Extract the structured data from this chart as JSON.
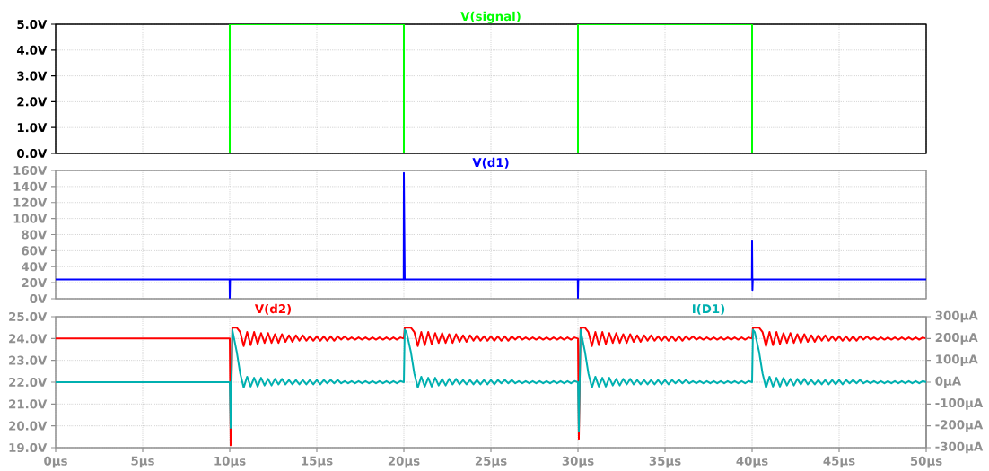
{
  "chart_data": [
    {
      "type": "line",
      "x": [
        0,
        10,
        10,
        20,
        20,
        30,
        30,
        40,
        40,
        50
      ],
      "xlim": [
        0,
        50
      ],
      "xticks": [
        {
          "value": 0,
          "label": null
        },
        {
          "value": 5,
          "label": null
        },
        {
          "value": 10,
          "label": null
        },
        {
          "value": 15,
          "label": null
        },
        {
          "value": 20,
          "label": null
        },
        {
          "value": 25,
          "label": null
        },
        {
          "value": 30,
          "label": null
        },
        {
          "value": 35,
          "label": null
        },
        {
          "value": 40,
          "label": null
        },
        {
          "value": 45,
          "label": null
        },
        {
          "value": 50,
          "label": null
        }
      ],
      "ylim": [
        0,
        5
      ],
      "yticks": [
        {
          "value": 0,
          "label": "0.0V"
        },
        {
          "value": 1,
          "label": "1.0V"
        },
        {
          "value": 2,
          "label": "2.0V"
        },
        {
          "value": 3,
          "label": "3.0V"
        },
        {
          "value": 4,
          "label": "4.0V"
        },
        {
          "value": 5,
          "label": "5.0V"
        }
      ],
      "grid": true,
      "tick_labels": "y",
      "series": [
        {
          "name": "V(signal)",
          "color": "#00ff00",
          "values": [
            0,
            0,
            5,
            5,
            0,
            0,
            5,
            5,
            0,
            0
          ]
        }
      ]
    },
    {
      "type": "line",
      "x": [
        0,
        9.99,
        10,
        10.02,
        19.99,
        20,
        20.05,
        29.99,
        30,
        30.02,
        39.99,
        40,
        40.02,
        40.04,
        50
      ],
      "xlim": [
        0,
        50
      ],
      "xticks": [
        {
          "value": 0,
          "label": null
        },
        {
          "value": 5,
          "label": null
        },
        {
          "value": 10,
          "label": null
        },
        {
          "value": 15,
          "label": null
        },
        {
          "value": 20,
          "label": null
        },
        {
          "value": 25,
          "label": null
        },
        {
          "value": 30,
          "label": null
        },
        {
          "value": 35,
          "label": null
        },
        {
          "value": 40,
          "label": null
        },
        {
          "value": 45,
          "label": null
        },
        {
          "value": 50,
          "label": null
        }
      ],
      "ylim": [
        0,
        160
      ],
      "yticks": [
        {
          "value": 0,
          "label": "0V"
        },
        {
          "value": 20,
          "label": "20V"
        },
        {
          "value": 40,
          "label": "40V"
        },
        {
          "value": 60,
          "label": "60V"
        },
        {
          "value": 80,
          "label": "80V"
        },
        {
          "value": 100,
          "label": "100V"
        },
        {
          "value": 120,
          "label": "120V"
        },
        {
          "value": 140,
          "label": "140V"
        },
        {
          "value": 160,
          "label": "160V"
        }
      ],
      "grid": true,
      "tick_labels": "y",
      "series": [
        {
          "name": "V(d1)",
          "color": "#0000ff",
          "values": [
            24,
            24,
            1,
            24,
            24,
            157,
            24,
            24,
            1,
            24,
            24,
            72,
            11,
            24,
            24
          ]
        }
      ]
    },
    {
      "type": "line",
      "x": [
        0,
        10,
        10.05,
        10.15,
        10.4,
        10.6,
        10.8,
        11,
        11.2,
        11.4,
        11.6,
        11.8,
        12,
        12.2,
        12.4,
        12.6,
        12.8,
        13,
        13.2,
        13.4,
        13.6,
        13.8,
        14,
        14.2,
        14.4,
        14.6,
        14.8,
        15,
        15.2,
        15.4,
        15.6,
        15.8,
        16,
        16.2,
        16.4,
        16.6,
        16.8,
        17,
        17.2,
        17.4,
        17.6,
        17.8,
        18,
        18.2,
        18.4,
        18.6,
        18.8,
        19,
        19.2,
        19.4,
        19.6,
        19.8,
        20,
        20.05,
        20.15,
        20.4,
        20.6,
        20.8,
        21,
        21.2,
        21.4,
        21.6,
        21.8,
        22,
        22.2,
        22.4,
        22.6,
        22.8,
        23,
        23.2,
        23.4,
        23.6,
        23.8,
        24,
        24.2,
        24.4,
        24.6,
        24.8,
        25,
        25.2,
        25.4,
        25.6,
        25.8,
        26,
        26.2,
        26.4,
        26.6,
        26.8,
        27,
        27.2,
        27.4,
        27.6,
        27.8,
        28,
        28.2,
        28.4,
        28.6,
        28.8,
        29,
        29.2,
        29.4,
        29.6,
        29.8,
        30,
        30.05,
        30.15,
        30.4,
        30.6,
        30.8,
        31,
        31.2,
        31.4,
        31.6,
        31.8,
        32,
        32.2,
        32.4,
        32.6,
        32.8,
        33,
        33.2,
        33.4,
        33.6,
        33.8,
        34,
        34.2,
        34.4,
        34.6,
        34.8,
        35,
        35.2,
        35.4,
        35.6,
        35.8,
        36,
        36.2,
        36.4,
        36.6,
        36.8,
        37,
        37.2,
        37.4,
        37.6,
        37.8,
        38,
        38.2,
        38.4,
        38.6,
        38.8,
        39,
        39.2,
        39.4,
        39.6,
        39.8,
        40,
        40.05,
        40.15,
        40.4,
        40.6,
        40.8,
        41,
        41.2,
        41.4,
        41.6,
        41.8,
        42,
        42.2,
        42.4,
        42.6,
        42.8,
        43,
        43.2,
        43.4,
        43.6,
        43.8,
        44,
        44.2,
        44.4,
        44.6,
        44.8,
        45,
        45.2,
        45.4,
        45.6,
        45.8,
        46,
        46.2,
        46.4,
        46.6,
        46.8,
        47,
        47.2,
        47.4,
        47.6,
        47.8,
        48,
        48.2,
        48.4,
        48.6,
        48.8,
        49,
        49.2,
        49.4,
        49.6,
        49.8,
        50
      ],
      "xlim": [
        0,
        50
      ],
      "xticks": [
        {
          "value": 0,
          "label": "0µs"
        },
        {
          "value": 5,
          "label": "5µs"
        },
        {
          "value": 10,
          "label": "10µs"
        },
        {
          "value": 15,
          "label": "15µs"
        },
        {
          "value": 20,
          "label": "20µs"
        },
        {
          "value": 25,
          "label": "25µs"
        },
        {
          "value": 30,
          "label": "30µs"
        },
        {
          "value": 35,
          "label": "35µs"
        },
        {
          "value": 40,
          "label": "40µs"
        },
        {
          "value": 45,
          "label": "45µs"
        },
        {
          "value": 50,
          "label": "50µs"
        }
      ],
      "ylim": [
        19,
        25
      ],
      "yticks": [
        {
          "value": 19,
          "label": "19.0V"
        },
        {
          "value": 20,
          "label": "20.0V"
        },
        {
          "value": 21,
          "label": "21.0V"
        },
        {
          "value": 22,
          "label": "22.0V"
        },
        {
          "value": 23,
          "label": "23.0V"
        },
        {
          "value": 24,
          "label": "24.0V"
        },
        {
          "value": 25,
          "label": "25.0V"
        }
      ],
      "y2lim": [
        -300,
        300
      ],
      "y2ticks": [
        {
          "value": -300,
          "label": "-300µA"
        },
        {
          "value": -200,
          "label": "-200µA"
        },
        {
          "value": -100,
          "label": "-100µA"
        },
        {
          "value": 0,
          "label": "0µA"
        },
        {
          "value": 100,
          "label": "100µA"
        },
        {
          "value": 200,
          "label": "200µA"
        },
        {
          "value": 300,
          "label": "300µA"
        }
      ],
      "grid": true,
      "series": [
        {
          "name": "V(d2)",
          "color": "#ff0000",
          "values": [
            24,
            24,
            19.1,
            24.5,
            24.5,
            24.3,
            23.65,
            24.3,
            23.7,
            24.3,
            23.75,
            24.25,
            23.8,
            24.25,
            23.8,
            24.2,
            23.8,
            24.2,
            23.85,
            24.15,
            23.85,
            24.15,
            23.9,
            24.15,
            23.9,
            24.1,
            23.9,
            24.1,
            23.9,
            24.1,
            23.9,
            24.1,
            23.9,
            24.1,
            23.95,
            24.1,
            23.95,
            24.05,
            23.95,
            24.05,
            23.95,
            24.05,
            23.95,
            24.05,
            23.95,
            24.05,
            23.95,
            24.05,
            23.95,
            24.05,
            23.95,
            24.05,
            24,
            24.5,
            24.5,
            24.5,
            24.3,
            23.65,
            24.3,
            23.7,
            24.3,
            23.75,
            24.25,
            23.8,
            24.25,
            23.8,
            24.2,
            23.8,
            24.2,
            23.85,
            24.15,
            23.85,
            24.15,
            23.9,
            24.15,
            23.9,
            24.1,
            23.9,
            24.1,
            23.9,
            24.1,
            23.9,
            24.1,
            23.9,
            24.1,
            23.95,
            24.1,
            23.95,
            24.05,
            23.95,
            24.05,
            23.95,
            24.05,
            23.95,
            24.05,
            23.95,
            24.05,
            23.95,
            24.05,
            23.95,
            24.05,
            23.95,
            24.05,
            24,
            19.4,
            24.5,
            24.5,
            24.3,
            23.65,
            24.3,
            23.7,
            24.3,
            23.75,
            24.25,
            23.8,
            24.25,
            23.8,
            24.2,
            23.8,
            24.2,
            23.85,
            24.15,
            23.85,
            24.15,
            23.9,
            24.15,
            23.9,
            24.1,
            23.9,
            24.1,
            23.9,
            24.1,
            23.9,
            24.1,
            23.9,
            24.1,
            23.95,
            24.1,
            23.95,
            24.05,
            23.95,
            24.05,
            23.95,
            24.05,
            23.95,
            24.05,
            23.95,
            24.05,
            23.95,
            24.05,
            23.95,
            24.05,
            23.95,
            24.05,
            24,
            24.5,
            24.5,
            24.5,
            24.3,
            23.65,
            24.3,
            23.7,
            24.3,
            23.75,
            24.25,
            23.8,
            24.25,
            23.8,
            24.2,
            23.8,
            24.2,
            23.85,
            24.15,
            23.85,
            24.15,
            23.9,
            24.15,
            23.9,
            24.1,
            23.9,
            24.1,
            23.9,
            24.1,
            23.9,
            24.1,
            23.9,
            24.1,
            23.95,
            24.1,
            23.95,
            24.05,
            23.95,
            24.05,
            23.95,
            24.05,
            23.95,
            24.05,
            23.95,
            24.05,
            23.95,
            24.05,
            23.95,
            24.05,
            23.95,
            24.05,
            24
          ]
        },
        {
          "name": "I(D1)",
          "color": "#00b0b0",
          "axis": "y2",
          "values": [
            0,
            0,
            -210,
            240,
            140,
            40,
            -25,
            25,
            -20,
            20,
            -20,
            20,
            -15,
            15,
            -15,
            15,
            -10,
            15,
            -10,
            10,
            -10,
            10,
            -10,
            10,
            -10,
            10,
            -10,
            10,
            -10,
            10,
            -5,
            10,
            -5,
            10,
            -5,
            5,
            -5,
            5,
            -5,
            5,
            -5,
            5,
            -5,
            5,
            -5,
            5,
            -5,
            5,
            -5,
            5,
            -5,
            5,
            0,
            240,
            230,
            140,
            40,
            -25,
            25,
            -20,
            20,
            -20,
            20,
            -15,
            15,
            -15,
            15,
            -10,
            15,
            -10,
            10,
            -10,
            10,
            -10,
            10,
            -10,
            10,
            -10,
            10,
            -10,
            10,
            -5,
            10,
            -5,
            10,
            -5,
            5,
            -5,
            5,
            -5,
            5,
            -5,
            5,
            -5,
            5,
            -5,
            5,
            -5,
            5,
            -5,
            5,
            -5,
            5,
            0,
            -225,
            240,
            140,
            40,
            -25,
            25,
            -20,
            20,
            -20,
            20,
            -15,
            15,
            -15,
            15,
            -10,
            15,
            -10,
            10,
            -10,
            10,
            -10,
            10,
            -10,
            10,
            -10,
            10,
            -10,
            10,
            -5,
            10,
            -5,
            10,
            -5,
            5,
            -5,
            5,
            -5,
            5,
            -5,
            5,
            -5,
            5,
            -5,
            5,
            -5,
            5,
            -5,
            5,
            -5,
            5,
            0,
            240,
            230,
            140,
            40,
            -25,
            25,
            -20,
            20,
            -20,
            20,
            -15,
            15,
            -15,
            15,
            -10,
            15,
            -10,
            10,
            -10,
            10,
            -10,
            10,
            -10,
            10,
            -10,
            10,
            -10,
            10,
            -5,
            10,
            -5,
            10,
            -5,
            5,
            -5,
            5,
            -5,
            5,
            -5,
            5,
            -5,
            5,
            -5,
            5,
            -5,
            5,
            -5,
            5,
            -5,
            5,
            0
          ]
        }
      ]
    }
  ]
}
